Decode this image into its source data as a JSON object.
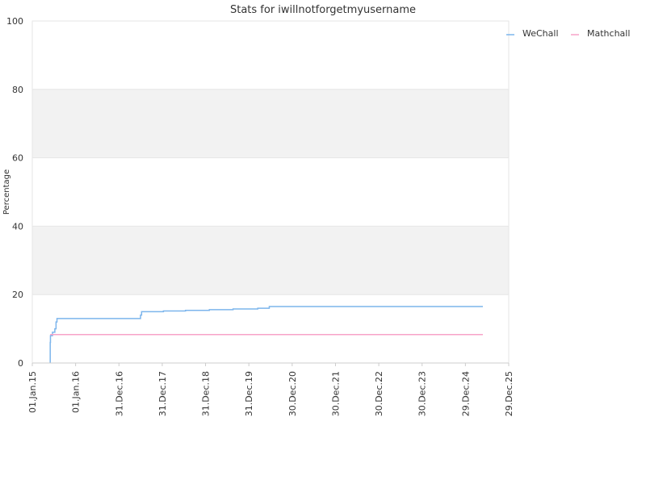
{
  "chart_data": {
    "type": "line",
    "title": "Stats for iwillnotforgetmyusername",
    "xlabel": "",
    "ylabel": "Percentage",
    "ylim": [
      0,
      100
    ],
    "yticks": [
      0,
      20,
      40,
      60,
      80,
      100
    ],
    "xlim": [
      "2015-01-01",
      "2025-12-29"
    ],
    "xticks": [
      {
        "date": "2015-01-01",
        "label": "01.Jan.15"
      },
      {
        "date": "2016-01-01",
        "label": "01.Jan.16"
      },
      {
        "date": "2016-12-31",
        "label": "31.Dec.16"
      },
      {
        "date": "2017-12-31",
        "label": "31.Dec.17"
      },
      {
        "date": "2018-12-31",
        "label": "31.Dec.18"
      },
      {
        "date": "2019-12-31",
        "label": "31.Dec.19"
      },
      {
        "date": "2020-12-30",
        "label": "30.Dec.20"
      },
      {
        "date": "2021-12-30",
        "label": "30.Dec.21"
      },
      {
        "date": "2022-12-30",
        "label": "30.Dec.22"
      },
      {
        "date": "2023-12-30",
        "label": "30.Dec.23"
      },
      {
        "date": "2024-12-29",
        "label": "29.Dec.24"
      },
      {
        "date": "2025-12-29",
        "label": "29.Dec.25"
      }
    ],
    "grid": true,
    "legend_position": "top-right",
    "series": [
      {
        "name": "WeChall",
        "color": "#7cb5ec",
        "step": true,
        "points": [
          [
            "2015-06-01",
            0
          ],
          [
            "2015-06-01",
            6
          ],
          [
            "2015-06-03",
            8
          ],
          [
            "2015-06-20",
            9
          ],
          [
            "2015-07-10",
            10
          ],
          [
            "2015-07-20",
            12
          ],
          [
            "2015-07-28",
            13
          ],
          [
            "2017-06-25",
            13
          ],
          [
            "2017-07-01",
            14
          ],
          [
            "2017-07-10",
            15
          ],
          [
            "2018-01-10",
            15.2
          ],
          [
            "2018-07-15",
            15.4
          ],
          [
            "2019-02-01",
            15.6
          ],
          [
            "2019-08-20",
            15.8
          ],
          [
            "2020-03-15",
            16
          ],
          [
            "2020-06-20",
            16.5
          ],
          [
            "2025-05-25",
            16.5
          ]
        ]
      },
      {
        "name": "Mathchall",
        "color": "#f7a3c8",
        "step": true,
        "points": [
          [
            "2015-06-01",
            8.3
          ],
          [
            "2025-05-25",
            8.3
          ]
        ]
      }
    ]
  }
}
